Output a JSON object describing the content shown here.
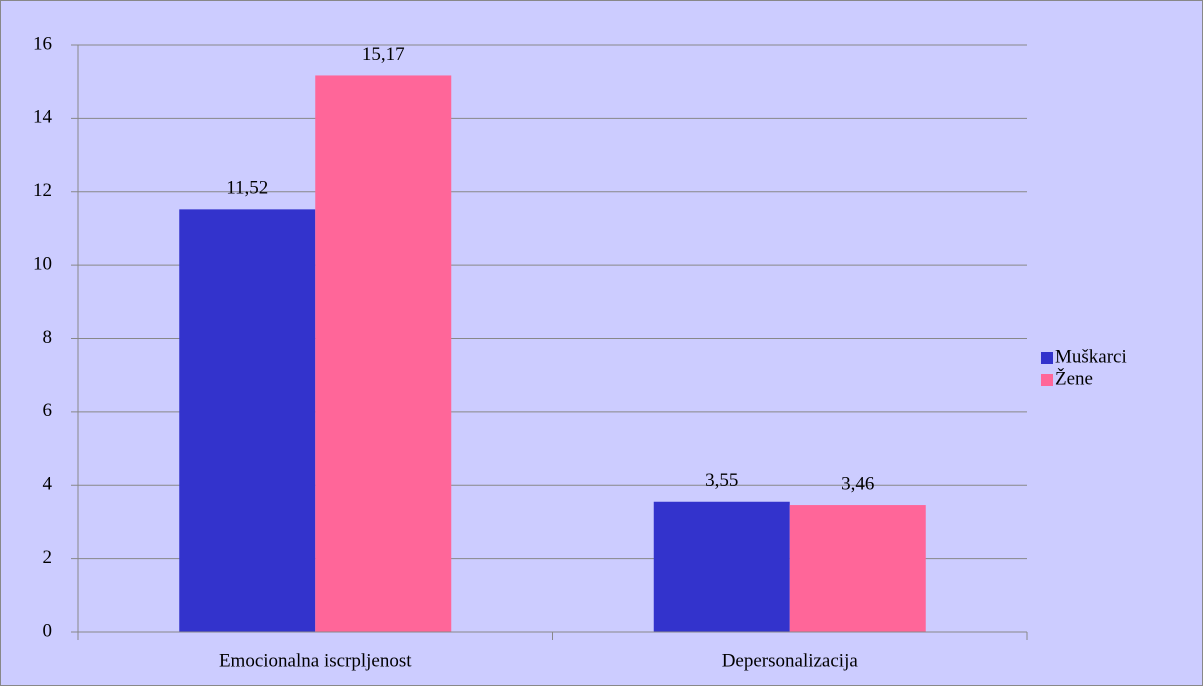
{
  "chart_data": {
    "type": "bar",
    "categories": [
      "Emocionalna iscrpljenost",
      "Depersonalizacija"
    ],
    "series": [
      {
        "name": "Muškarci",
        "color": "#3333cc",
        "values": [
          11.52,
          3.55
        ],
        "value_labels": [
          "11,52",
          "3,55"
        ]
      },
      {
        "name": "Žene",
        "color": "#ff6699",
        "values": [
          15.17,
          3.46
        ],
        "value_labels": [
          "15,17",
          "3,46"
        ]
      }
    ],
    "ylim": [
      0,
      16
    ],
    "yticks": [
      0,
      2,
      4,
      6,
      8,
      10,
      12,
      14,
      16
    ],
    "grid": true,
    "legend": "right"
  }
}
